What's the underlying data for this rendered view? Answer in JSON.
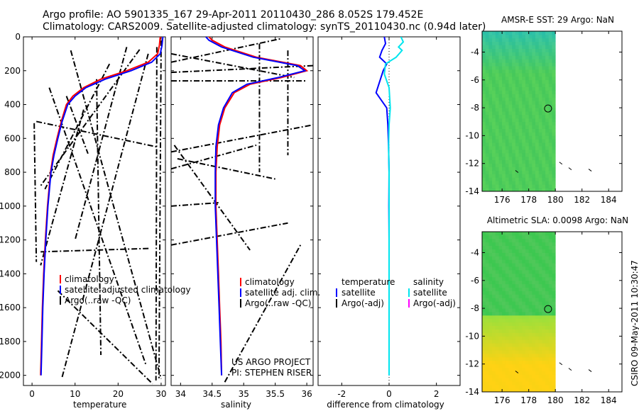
{
  "figure": {
    "title_line1": "Argo profile: AO 5901335_167 29-Apr-2011 20110430_286 8.052S 179.452E",
    "title_line2": "Climatology: CARS2009. Satellite-adjusted climatology: synTS_20110430.nc (0.94d later)",
    "side_label": "CSIRO 09-May-2011 10:30:47"
  },
  "colors": {
    "climatology": "#ff0000",
    "satellite": "#0000ff",
    "argo": "#000000",
    "sal_satellite": "#00e5ee",
    "sal_argo": "#ff00ff"
  },
  "chart_data": [
    {
      "id": "temperature",
      "type": "line",
      "xlabel": "temperature",
      "ylabel": "",
      "xlim": [
        -2,
        31
      ],
      "ylim": [
        2060,
        0
      ],
      "yreverse": true,
      "xticks": [
        0,
        10,
        20,
        30
      ],
      "yticks": [
        0,
        200,
        400,
        600,
        800,
        1000,
        1200,
        1400,
        1600,
        1800,
        2000
      ],
      "legend": [
        "climatology",
        "satellite-adjusted climatology",
        "Argo(..raw -QC)"
      ],
      "series": [
        {
          "name": "climatology",
          "color": "#ff0000",
          "x": [
            29.8,
            29.6,
            29.2,
            27.0,
            22.0,
            16.0,
            12.0,
            9.5,
            8.0,
            6.8,
            5.8,
            4.9,
            4.3,
            3.6,
            3.1,
            2.7,
            2.4,
            2.2,
            2.0
          ],
          "y": [
            0,
            50,
            100,
            150,
            200,
            250,
            300,
            350,
            400,
            500,
            600,
            700,
            800,
            1000,
            1200,
            1400,
            1600,
            1800,
            2000
          ]
        },
        {
          "name": "satellite-adjusted climatology",
          "color": "#0000ff",
          "x": [
            30.4,
            30.2,
            29.8,
            27.8,
            23.0,
            17.0,
            12.5,
            10.0,
            8.3,
            7.0,
            6.0,
            5.1,
            4.4,
            3.7,
            3.2,
            2.8,
            2.5,
            2.3,
            2.1
          ],
          "y": [
            0,
            50,
            100,
            150,
            200,
            250,
            300,
            350,
            400,
            500,
            600,
            700,
            800,
            1000,
            1200,
            1400,
            1600,
            1800,
            2000
          ]
        }
      ],
      "argo_segments": [
        [
          [
            30.0,
            20
          ],
          [
            29.5,
            2020
          ]
        ],
        [
          [
            29.0,
            60
          ],
          [
            28.8,
            2030
          ]
        ],
        [
          [
            9.0,
            80
          ],
          [
            30.0,
            2020
          ]
        ],
        [
          [
            27.0,
            100
          ],
          [
            7.0,
            2010
          ]
        ],
        [
          [
            25.0,
            75
          ],
          [
            2.0,
            880
          ]
        ],
        [
          [
            15.0,
            250
          ],
          [
            16.0,
            1880
          ]
        ],
        [
          [
            1.0,
            500
          ],
          [
            29.0,
            650
          ]
        ],
        [
          [
            0.5,
            510
          ],
          [
            1.0,
            1330
          ]
        ],
        [
          [
            12.0,
            430
          ],
          [
            2.0,
            1350
          ]
        ],
        [
          [
            22.0,
            60
          ],
          [
            10.0,
            1200
          ]
        ],
        [
          [
            4.0,
            300
          ],
          [
            26.5,
            1940
          ]
        ],
        [
          [
            8.0,
            350
          ],
          [
            13.0,
            690
          ]
        ],
        [
          [
            2.0,
            1270
          ],
          [
            27.5,
            1250
          ]
        ],
        [
          [
            6.0,
            1500
          ],
          [
            28.0,
            2050
          ]
        ],
        [
          [
            18.0,
            160
          ],
          [
            3.0,
            900
          ]
        ]
      ]
    },
    {
      "id": "salinity",
      "type": "line",
      "xlabel": "salinity",
      "xlim": [
        33.85,
        36.1
      ],
      "ylim": [
        2060,
        0
      ],
      "yreverse": true,
      "xticks": [
        34,
        34.5,
        35,
        35.5,
        36
      ],
      "legend": [
        "climatology",
        "satellite adj. clim.",
        "Argo(..raw -QC)"
      ],
      "annotation": [
        "US ARGO PROJECT",
        "PI: STEPHEN RISER"
      ],
      "series": [
        {
          "name": "climatology",
          "color": "#ff0000",
          "x": [
            34.45,
            34.5,
            34.7,
            35.2,
            35.9,
            36.0,
            35.6,
            35.1,
            34.85,
            34.7,
            34.62,
            34.58,
            34.56,
            34.56,
            34.58,
            34.6,
            34.62,
            34.64,
            34.65
          ],
          "y": [
            0,
            20,
            60,
            120,
            170,
            200,
            240,
            280,
            330,
            420,
            520,
            650,
            800,
            1000,
            1200,
            1400,
            1600,
            1800,
            2000
          ]
        },
        {
          "name": "satellite adj. clim.",
          "color": "#0000ff",
          "x": [
            34.4,
            34.45,
            34.65,
            35.15,
            35.85,
            35.97,
            35.55,
            35.05,
            34.82,
            34.68,
            34.6,
            34.56,
            34.55,
            34.55,
            34.57,
            34.59,
            34.61,
            34.63,
            34.65
          ],
          "y": [
            0,
            20,
            60,
            120,
            170,
            200,
            240,
            280,
            330,
            420,
            520,
            650,
            800,
            1000,
            1200,
            1400,
            1600,
            1800,
            2000
          ]
        }
      ],
      "argo_segments": [
        [
          [
            33.85,
            210
          ],
          [
            36.1,
            170
          ]
        ],
        [
          [
            33.85,
            100
          ],
          [
            35.8,
            240
          ]
        ],
        [
          [
            33.85,
            680
          ],
          [
            36.1,
            520
          ]
        ],
        [
          [
            33.85,
            780
          ],
          [
            35.2,
            640
          ]
        ],
        [
          [
            33.85,
            1000
          ],
          [
            34.6,
            980
          ]
        ],
        [
          [
            33.85,
            1230
          ],
          [
            35.7,
            1100
          ]
        ],
        [
          [
            34.7,
            2040
          ],
          [
            35.9,
            1230
          ]
        ],
        [
          [
            33.95,
            720
          ],
          [
            35.5,
            840
          ]
        ],
        [
          [
            33.85,
            260
          ],
          [
            36.0,
            260
          ]
        ],
        [
          [
            35.25,
            40
          ],
          [
            35.25,
            800
          ]
        ],
        [
          [
            33.9,
            640
          ],
          [
            35.1,
            1260
          ]
        ],
        [
          [
            33.85,
            150
          ],
          [
            35.6,
            10
          ]
        ],
        [
          [
            35.7,
            80
          ],
          [
            35.7,
            700
          ]
        ]
      ]
    },
    {
      "id": "difference",
      "type": "line",
      "xlabel": "difference from climatology",
      "xlim": [
        -3.0,
        3.0
      ],
      "ylim": [
        2060,
        0
      ],
      "yreverse": true,
      "xticks": [
        -2,
        0,
        2
      ],
      "legend_temperature": [
        "temperature",
        "satellite",
        "Argo(-adj)"
      ],
      "legend_salinity": [
        "salinity",
        "satellite",
        "Argo(-adj)"
      ],
      "series": [
        {
          "name": "temperature satellite",
          "color": "#0000ff",
          "x": [
            -0.2,
            -0.15,
            -0.3,
            -0.4,
            -0.1,
            -0.25,
            -0.55,
            -0.1,
            -0.05,
            -0.02,
            0.0,
            -0.01,
            0.0,
            0.0,
            0.0,
            0.0,
            0.0
          ],
          "y": [
            0,
            40,
            80,
            120,
            160,
            200,
            330,
            420,
            520,
            650,
            800,
            1000,
            1200,
            1400,
            1600,
            1800,
            2000
          ]
        },
        {
          "name": "salinity satellite",
          "color": "#00e5ee",
          "x": [
            0.5,
            0.6,
            0.4,
            0.55,
            0.3,
            -0.15,
            -0.2,
            0.0,
            0.05,
            0.0,
            -0.02,
            0.0,
            0.0,
            0.0,
            0.0,
            0.0,
            0.0
          ],
          "y": [
            0,
            30,
            60,
            80,
            120,
            160,
            220,
            300,
            420,
            520,
            650,
            800,
            1000,
            1200,
            1400,
            1600,
            2000
          ]
        }
      ]
    },
    {
      "id": "sst_map",
      "type": "heatmap",
      "title": "AMSR-E SST: 29 Argo: NaN",
      "xlim": [
        174.5,
        185.0
      ],
      "ylim": [
        -14,
        -2.5
      ],
      "xticks": [
        176,
        178,
        180,
        182,
        184
      ],
      "yticks": [
        -4,
        -6,
        -8,
        -10,
        -12,
        -14
      ],
      "data_extent": [
        174.5,
        180.0
      ],
      "marker": {
        "lon": 179.452,
        "lat": -8.052
      }
    },
    {
      "id": "sla_map",
      "type": "heatmap",
      "title": "Altimetric SLA: 0.0098 Argo: NaN",
      "xlim": [
        174.5,
        185.0
      ],
      "ylim": [
        -14,
        -2.5
      ],
      "xticks": [
        176,
        178,
        180,
        182,
        184
      ],
      "yticks": [
        -4,
        -6,
        -8,
        -10,
        -12,
        -14
      ],
      "data_extent": [
        174.5,
        180.0
      ],
      "marker": {
        "lon": 179.452,
        "lat": -8.052
      }
    }
  ]
}
